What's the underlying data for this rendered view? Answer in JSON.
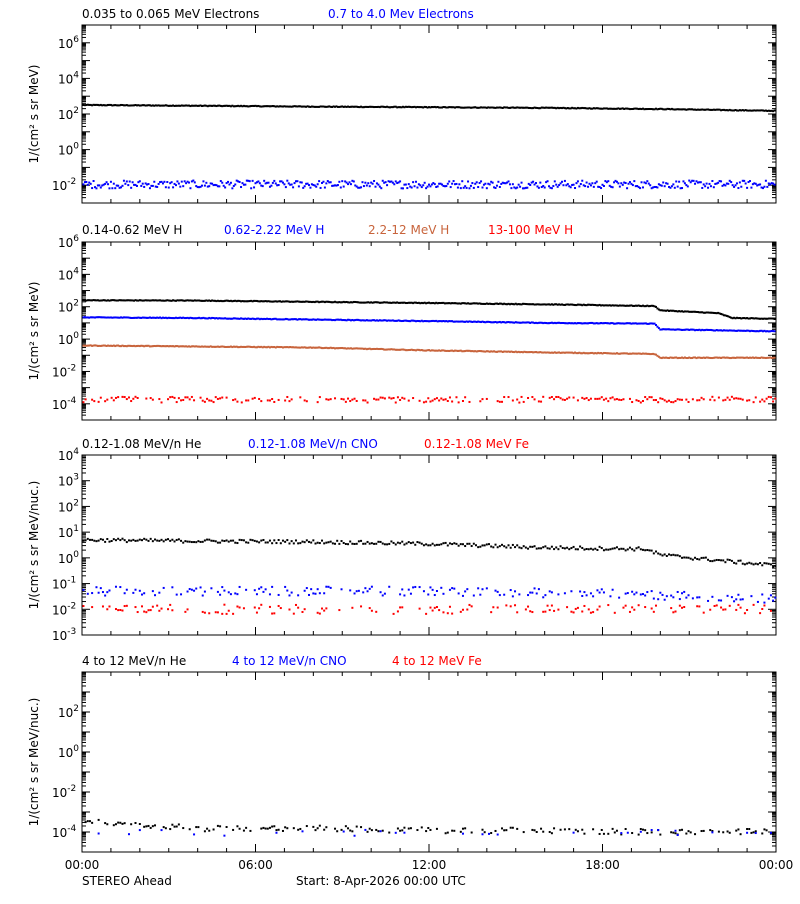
{
  "time_axis": {
    "ticks": [
      "00:00",
      "06:00",
      "12:00",
      "18:00",
      "00:00"
    ],
    "range_hours": [
      0,
      24
    ]
  },
  "footer": {
    "spacecraft": "STEREO Ahead",
    "start_label": "Start:  8-Apr-2026 00:00 UTC"
  },
  "colors": {
    "black": "#000000",
    "blue": "#0000ff",
    "orange": "#c8643c",
    "red": "#ff0000"
  },
  "chart_data": [
    {
      "type": "scatter",
      "ylabel": "1/(cm² s sr MeV)",
      "yscale": "log",
      "ylim_exp": [
        -3,
        7
      ],
      "yticks": [
        {
          "exp": 6,
          "label": "10",
          "sup": "6"
        },
        {
          "exp": 4,
          "label": "10",
          "sup": "4"
        },
        {
          "exp": 2,
          "label": "10",
          "sup": "2"
        },
        {
          "exp": 0,
          "label": "10",
          "sup": "0"
        },
        {
          "exp": -2,
          "label": "10",
          "sup": "-2"
        }
      ],
      "xlim_hours": [
        0,
        24
      ],
      "series": [
        {
          "name": "0.035 to 0.065 MeV Electrons",
          "color": "#000000",
          "x": [
            0,
            4,
            8,
            12,
            16,
            20,
            24
          ],
          "y": [
            320,
            290,
            260,
            240,
            220,
            190,
            150
          ]
        },
        {
          "name": "0.7 to 4.0 Mev Electrons",
          "color": "#0000ff",
          "x": [
            0,
            4,
            8,
            12,
            16,
            20,
            24
          ],
          "y": [
            0.011,
            0.011,
            0.011,
            0.011,
            0.011,
            0.011,
            0.011
          ]
        }
      ]
    },
    {
      "type": "scatter",
      "ylabel": "1/(cm² s sr MeV)",
      "yscale": "log",
      "ylim_exp": [
        -5,
        6
      ],
      "yticks": [
        {
          "exp": 6,
          "label": "10",
          "sup": "6"
        },
        {
          "exp": 4,
          "label": "10",
          "sup": "4"
        },
        {
          "exp": 2,
          "label": "10",
          "sup": "2"
        },
        {
          "exp": 0,
          "label": "10",
          "sup": "0"
        },
        {
          "exp": -2,
          "label": "10",
          "sup": "-2"
        },
        {
          "exp": -4,
          "label": "10",
          "sup": "-4"
        }
      ],
      "xlim_hours": [
        0,
        24
      ],
      "series": [
        {
          "name": "0.14-0.62 MeV H",
          "color": "#000000",
          "x": [
            0,
            4,
            8,
            12,
            16,
            19.8,
            20,
            22,
            22.5,
            24
          ],
          "y": [
            250,
            240,
            200,
            170,
            140,
            110,
            60,
            40,
            20,
            18
          ]
        },
        {
          "name": "0.62-2.22 MeV H",
          "color": "#0000ff",
          "x": [
            0,
            4,
            8,
            12,
            16,
            19.8,
            20,
            22,
            24
          ],
          "y": [
            22,
            20,
            16,
            13,
            10,
            9,
            4,
            3.5,
            3
          ]
        },
        {
          "name": "2.2-12 MeV H",
          "color": "#c8643c",
          "x": [
            0,
            4,
            8,
            12,
            16,
            19.8,
            20,
            22,
            24
          ],
          "y": [
            0.4,
            0.35,
            0.3,
            0.2,
            0.15,
            0.12,
            0.07,
            0.07,
            0.07
          ]
        },
        {
          "name": "13-100 MeV H",
          "color": "#ff0000",
          "x": [
            0,
            6,
            12,
            18,
            24
          ],
          "y": [
            0.00018,
            0.00018,
            0.00018,
            0.00018,
            0.00018
          ]
        }
      ]
    },
    {
      "type": "scatter",
      "ylabel": "1/(cm² s sr MeV/nuc.)",
      "yscale": "log",
      "ylim_exp": [
        -3,
        4
      ],
      "yticks": [
        {
          "exp": 4,
          "label": "10",
          "sup": "4"
        },
        {
          "exp": 3,
          "label": "10",
          "sup": "3"
        },
        {
          "exp": 2,
          "label": "10",
          "sup": "2"
        },
        {
          "exp": 1,
          "label": "10",
          "sup": "1"
        },
        {
          "exp": 0,
          "label": "10",
          "sup": "0"
        },
        {
          "exp": -1,
          "label": "10",
          "sup": "-1"
        },
        {
          "exp": -2,
          "label": "10",
          "sup": "-2"
        },
        {
          "exp": -3,
          "label": "10",
          "sup": "-3"
        }
      ],
      "xlim_hours": [
        0,
        24
      ],
      "series": [
        {
          "name": "0.12-1.08 MeV/n He",
          "color": "#000000",
          "x": [
            0,
            4,
            8,
            12,
            16,
            19.5,
            20,
            22,
            24
          ],
          "y": [
            5,
            4.5,
            4.2,
            3.5,
            2.5,
            2.2,
            1.3,
            0.8,
            0.5
          ]
        },
        {
          "name": "0.12-1.08 MeV/n CNO",
          "color": "#0000ff",
          "x": [
            0,
            6,
            12,
            18,
            24
          ],
          "y": [
            0.05,
            0.05,
            0.05,
            0.04,
            0.025
          ]
        },
        {
          "name": "0.12-1.08 MeV Fe",
          "color": "#ff0000",
          "x": [
            0,
            6,
            12,
            18,
            24
          ],
          "y": [
            0.01,
            0.01,
            0.01,
            0.01,
            0.01
          ]
        }
      ]
    },
    {
      "type": "scatter",
      "ylabel": "1/(cm² s sr MeV/nuc.)",
      "yscale": "log",
      "ylim_exp": [
        -5,
        4
      ],
      "yticks": [
        {
          "exp": 2,
          "label": "10",
          "sup": "2"
        },
        {
          "exp": 0,
          "label": "10",
          "sup": "0"
        },
        {
          "exp": -2,
          "label": "10",
          "sup": "-2"
        },
        {
          "exp": -4,
          "label": "10",
          "sup": "-4"
        }
      ],
      "xlim_hours": [
        0,
        24
      ],
      "series": [
        {
          "name": "4 to 12 MeV/n He",
          "color": "#000000",
          "x": [
            0,
            4,
            8,
            12,
            16,
            20,
            24
          ],
          "y": [
            0.0004,
            0.00015,
            0.00015,
            0.00012,
            0.00012,
            0.0001,
            0.0001
          ]
        },
        {
          "name": "4 to 12 MeV/n CNO",
          "color": "#0000ff",
          "x": [
            0,
            12,
            24
          ],
          "y": [
            9e-05,
            9e-05,
            9e-05
          ]
        },
        {
          "name": "4 to 12 MeV Fe",
          "color": "#ff0000",
          "x": [],
          "y": []
        }
      ]
    }
  ]
}
